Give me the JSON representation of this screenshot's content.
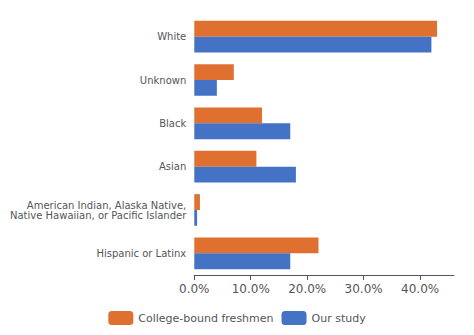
{
  "chart_data": {
    "type": "bar",
    "orientation": "horizontal",
    "categories": [
      "White",
      "Unknown",
      "Black",
      "Asian",
      "American Indian, Alaska Native,\nNative Hawaiian, or Pacific Islander",
      "Hispanic or Latinx"
    ],
    "series": [
      {
        "name": "College-bound freshmen",
        "color": "#E07030",
        "values": [
          0.43,
          0.07,
          0.12,
          0.11,
          0.01,
          0.22
        ]
      },
      {
        "name": "Our study",
        "color": "#4472C4",
        "values": [
          0.42,
          0.04,
          0.17,
          0.18,
          0.005,
          0.17
        ]
      }
    ],
    "xlim": [
      0,
      0.46
    ],
    "xticks": [
      {
        "value": 0.0,
        "label": "0.0%"
      },
      {
        "value": 0.1,
        "label": "10.0%"
      },
      {
        "value": 0.2,
        "label": "20.0%"
      },
      {
        "value": 0.3,
        "label": "30.0%"
      },
      {
        "value": 0.4,
        "label": "40.0%"
      }
    ],
    "grid": false,
    "legend": "bottom"
  }
}
